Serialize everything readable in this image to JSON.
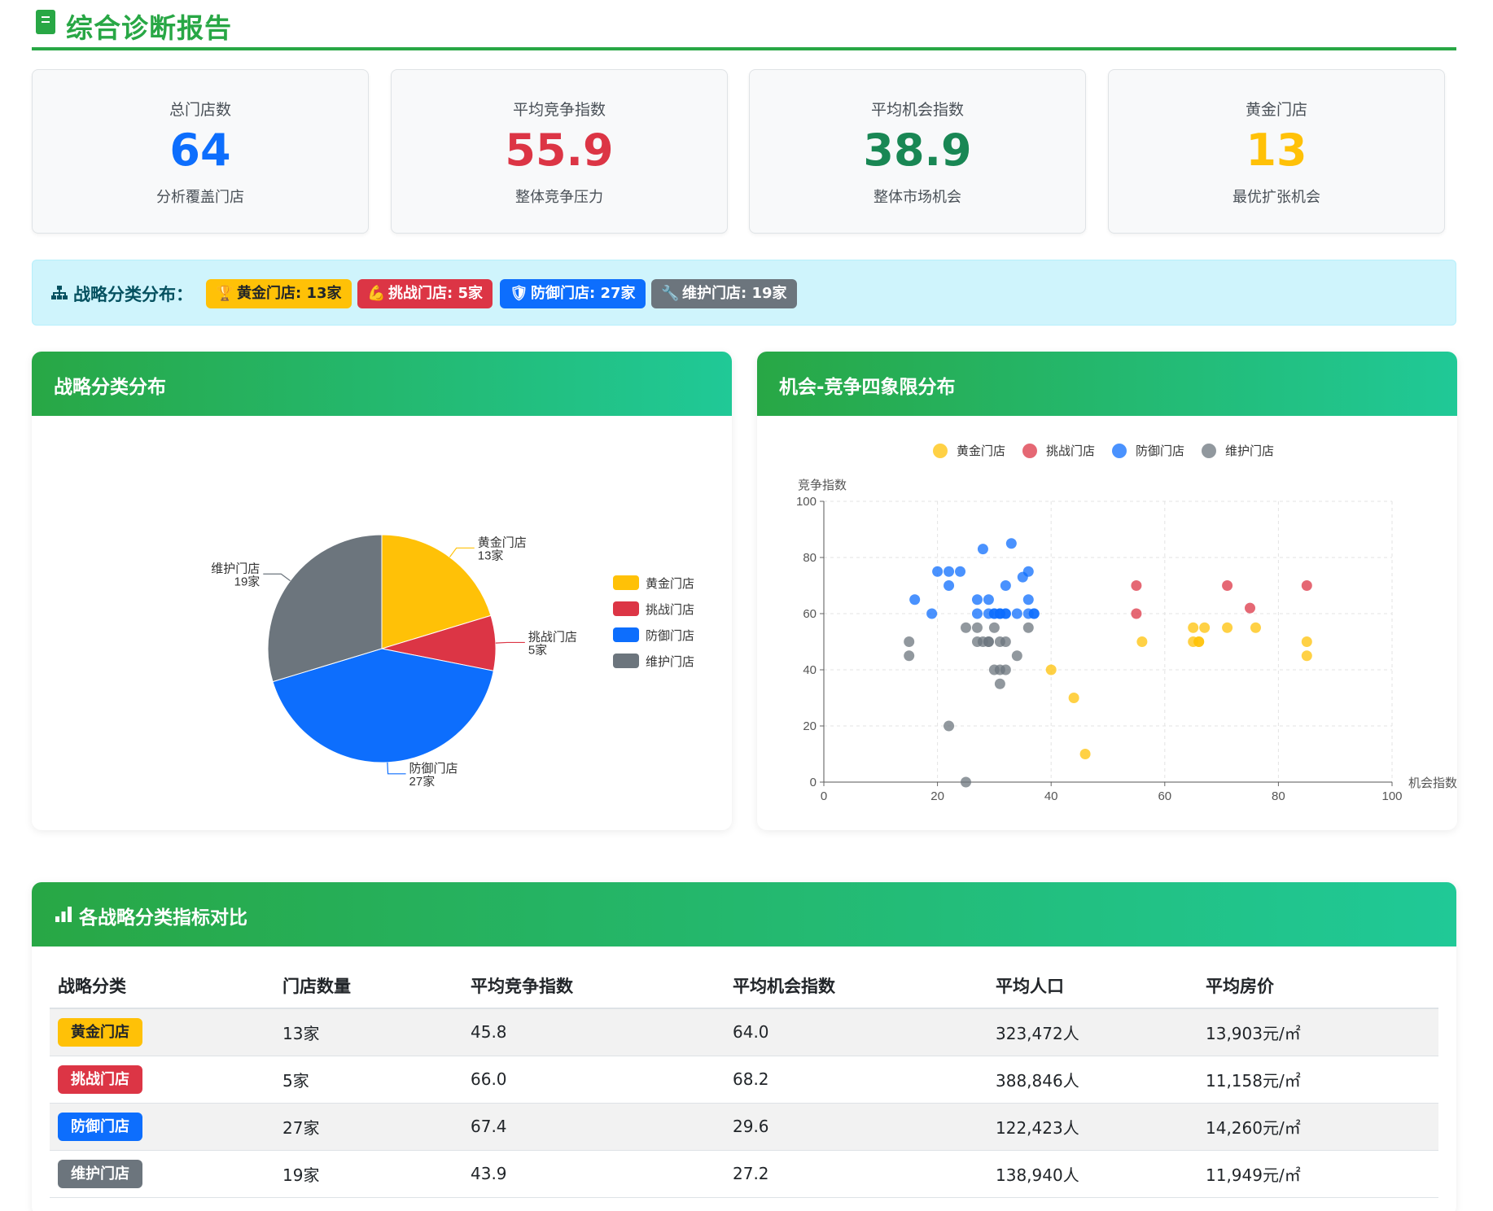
{
  "header": {
    "title": "综合诊断报告",
    "icon": "report-icon"
  },
  "stats": [
    {
      "label": "总门店数",
      "value": "64",
      "sub": "分析覆盖门店",
      "color": "#0d6efd"
    },
    {
      "label": "平均竞争指数",
      "value": "55.9",
      "sub": "整体竞争压力",
      "color": "#dc3545"
    },
    {
      "label": "平均机会指数",
      "value": "38.9",
      "sub": "整体市场机会",
      "color": "#198754"
    },
    {
      "label": "黄金门店",
      "value": "13",
      "sub": "最优扩张机会",
      "color": "#ffc107"
    }
  ],
  "strategy": {
    "title": "战略分类分布：",
    "badges": [
      {
        "icon": "🏆",
        "label": "黄金门店: 13家",
        "bg": "#ffc107",
        "fg": "#212529"
      },
      {
        "icon": "💪",
        "label": "挑战门店: 5家",
        "bg": "#dc3545",
        "fg": "#ffffff"
      },
      {
        "icon": "🛡",
        "label": "防御门店: 27家",
        "bg": "#0d6efd",
        "fg": "#ffffff"
      },
      {
        "icon": "🔧",
        "label": "维护门店: 19家",
        "bg": "#6c757d",
        "fg": "#ffffff"
      }
    ]
  },
  "pie_panel": {
    "title": "战略分类分布"
  },
  "scatter_panel": {
    "title": "机会-竞争四象限分布"
  },
  "chart_data": [
    {
      "type": "pie",
      "categories": [
        "黄金门店",
        "挑战门店",
        "防御门店",
        "维护门店"
      ],
      "values": [
        13,
        5,
        27,
        19
      ],
      "slice_labels": [
        "13家",
        "5家",
        "27家",
        "19家"
      ],
      "colors": [
        "#ffc107",
        "#dc3545",
        "#0d6efd",
        "#6c757d"
      ],
      "legend": "right"
    },
    {
      "type": "scatter",
      "xlabel": "机会指数",
      "ylabel": "竞争指数",
      "xlim": [
        0,
        100
      ],
      "ylim": [
        0,
        100
      ],
      "xticks": [
        0,
        20,
        40,
        60,
        80,
        100
      ],
      "yticks": [
        0,
        20,
        40,
        60,
        80,
        100
      ],
      "grid": true,
      "legend": "top",
      "series": [
        {
          "name": "黄金门店",
          "color": "#ffc107",
          "points": [
            [
              40,
              40
            ],
            [
              44,
              30
            ],
            [
              46,
              10
            ],
            [
              56,
              50
            ],
            [
              65,
              55
            ],
            [
              65,
              50
            ],
            [
              66,
              50
            ],
            [
              67,
              55
            ],
            [
              71,
              55
            ],
            [
              76,
              55
            ],
            [
              85,
              50
            ],
            [
              85,
              45
            ],
            [
              66,
              50
            ]
          ]
        },
        {
          "name": "挑战门店",
          "color": "#dc3545",
          "points": [
            [
              55,
              70
            ],
            [
              55,
              60
            ],
            [
              71,
              70
            ],
            [
              75,
              62
            ],
            [
              85,
              70
            ]
          ]
        },
        {
          "name": "防御门店",
          "color": "#0d6efd",
          "points": [
            [
              16,
              65
            ],
            [
              19,
              60
            ],
            [
              20,
              75
            ],
            [
              22,
              75
            ],
            [
              22,
              70
            ],
            [
              24,
              75
            ],
            [
              27,
              65
            ],
            [
              27,
              60
            ],
            [
              28,
              83
            ],
            [
              29,
              65
            ],
            [
              30,
              60
            ],
            [
              31,
              60
            ],
            [
              31,
              60
            ],
            [
              32,
              60
            ],
            [
              32,
              70
            ],
            [
              33,
              85
            ],
            [
              34,
              60
            ],
            [
              35,
              73
            ],
            [
              36,
              75
            ],
            [
              36,
              65
            ],
            [
              37,
              60
            ],
            [
              37,
              60
            ],
            [
              29,
              60
            ],
            [
              30,
              60
            ],
            [
              32,
              60
            ],
            [
              36,
              60
            ],
            [
              31,
              60
            ]
          ]
        },
        {
          "name": "维护门店",
          "color": "#6c757d",
          "points": [
            [
              15,
              50
            ],
            [
              15,
              45
            ],
            [
              22,
              20
            ],
            [
              25,
              0
            ],
            [
              25,
              55
            ],
            [
              27,
              55
            ],
            [
              27,
              50
            ],
            [
              28,
              50
            ],
            [
              29,
              50
            ],
            [
              30,
              55
            ],
            [
              31,
              50
            ],
            [
              30,
              40
            ],
            [
              31,
              35
            ],
            [
              32,
              40
            ],
            [
              32,
              50
            ],
            [
              34,
              45
            ],
            [
              36,
              55
            ],
            [
              29,
              50
            ],
            [
              31,
              40
            ]
          ]
        }
      ]
    }
  ],
  "table": {
    "title": "各战略分类指标对比",
    "headers": [
      "战略分类",
      "门店数量",
      "平均竞争指数",
      "平均机会指数",
      "平均人口",
      "平均房价"
    ],
    "rows": [
      {
        "category": "黄金门店",
        "bg": "#ffc107",
        "fg": "#212529",
        "count": "13家",
        "competition": "45.8",
        "opportunity": "64.0",
        "population": "323,472人",
        "price": "13,903元/㎡"
      },
      {
        "category": "挑战门店",
        "bg": "#dc3545",
        "fg": "#ffffff",
        "count": "5家",
        "competition": "66.0",
        "opportunity": "68.2",
        "population": "388,846人",
        "price": "11,158元/㎡"
      },
      {
        "category": "防御门店",
        "bg": "#0d6efd",
        "fg": "#ffffff",
        "count": "27家",
        "competition": "67.4",
        "opportunity": "29.6",
        "population": "122,423人",
        "price": "14,260元/㎡"
      },
      {
        "category": "维护门店",
        "bg": "#6c757d",
        "fg": "#ffffff",
        "count": "19家",
        "competition": "43.9",
        "opportunity": "27.2",
        "population": "138,940人",
        "price": "11,949元/㎡"
      }
    ]
  }
}
